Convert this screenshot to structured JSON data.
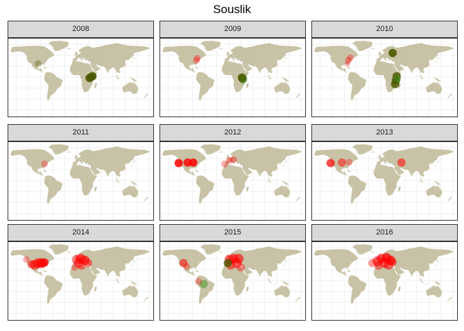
{
  "title": "Souslik",
  "colors": {
    "land": "#c8c3a6",
    "grid": "#ebebeb",
    "strip": "#d9d9d9",
    "red": "#ff0000",
    "olive": "#4d5a00",
    "green": "#3f8f1a"
  },
  "chart_data": {
    "type": "scatter",
    "geometry": "faceted world map with semi-transparent point markers",
    "title": "Souslik",
    "facets": [
      "2008",
      "2009",
      "2010",
      "2011",
      "2012",
      "2013",
      "2014",
      "2015",
      "2016"
    ],
    "panels": [
      {
        "year": "2008",
        "points": [
          {
            "lon": -96,
            "lat": 31,
            "color": "olive",
            "alpha": 0.35,
            "size": 5
          },
          {
            "lon": 32,
            "lat": -2,
            "color": "olive",
            "alpha": 0.9,
            "size": 6
          },
          {
            "lon": 35,
            "lat": 0,
            "color": "olive",
            "alpha": 0.9,
            "size": 6
          },
          {
            "lon": 39,
            "lat": 2,
            "color": "olive",
            "alpha": 0.9,
            "size": 6
          }
        ]
      },
      {
        "year": "2009",
        "points": [
          {
            "lon": -78,
            "lat": 43,
            "color": "red",
            "alpha": 0.3,
            "size": 5
          },
          {
            "lon": -80,
            "lat": 38,
            "color": "red",
            "alpha": 0.3,
            "size": 5
          },
          {
            "lon": 33,
            "lat": -1,
            "color": "olive",
            "alpha": 0.85,
            "size": 6
          },
          {
            "lon": 36,
            "lat": -5,
            "color": "green",
            "alpha": 0.6,
            "size": 6
          },
          {
            "lon": 34,
            "lat": -3,
            "color": "olive",
            "alpha": 0.7,
            "size": 6
          }
        ]
      },
      {
        "year": "2010",
        "points": [
          {
            "lon": -75,
            "lat": 44,
            "color": "red",
            "alpha": 0.3,
            "size": 5
          },
          {
            "lon": -80,
            "lat": 38,
            "color": "red",
            "alpha": 0.3,
            "size": 5
          },
          {
            "lon": -82,
            "lat": 30,
            "color": "red",
            "alpha": 0.25,
            "size": 4
          },
          {
            "lon": 30,
            "lat": 55,
            "color": "olive",
            "alpha": 0.9,
            "size": 6
          },
          {
            "lon": 40,
            "lat": 2,
            "color": "olive",
            "alpha": 0.85,
            "size": 6
          },
          {
            "lon": 38,
            "lat": -8,
            "color": "olive",
            "alpha": 0.85,
            "size": 6
          },
          {
            "lon": 36,
            "lat": -16,
            "color": "olive",
            "alpha": 0.85,
            "size": 6
          },
          {
            "lon": 42,
            "lat": -4,
            "color": "green",
            "alpha": 0.5,
            "size": 5
          }
        ]
      },
      {
        "year": "2011",
        "points": [
          {
            "lon": -80,
            "lat": 38,
            "color": "red",
            "alpha": 0.3,
            "size": 5
          }
        ]
      },
      {
        "year": "2012",
        "points": [
          {
            "lon": -124,
            "lat": 40,
            "color": "red",
            "alpha": 0.85,
            "size": 6
          },
          {
            "lon": -102,
            "lat": 41,
            "color": "red",
            "alpha": 0.8,
            "size": 6
          },
          {
            "lon": -88,
            "lat": 41,
            "color": "red",
            "alpha": 0.85,
            "size": 6
          },
          {
            "lon": 2,
            "lat": 46,
            "color": "red",
            "alpha": 0.35,
            "size": 5
          },
          {
            "lon": 12,
            "lat": 48,
            "color": "red",
            "alpha": 0.35,
            "size": 5
          },
          {
            "lon": -10,
            "lat": 38,
            "color": "red",
            "alpha": 0.3,
            "size": 5
          }
        ]
      },
      {
        "year": "2013",
        "points": [
          {
            "lon": -124,
            "lat": 40,
            "color": "red",
            "alpha": 0.7,
            "size": 6
          },
          {
            "lon": -96,
            "lat": 41,
            "color": "red",
            "alpha": 0.5,
            "size": 6
          },
          {
            "lon": -78,
            "lat": 42,
            "color": "red",
            "alpha": 0.3,
            "size": 5
          },
          {
            "lon": 52,
            "lat": 41,
            "color": "red",
            "alpha": 0.55,
            "size": 6
          }
        ]
      },
      {
        "year": "2014",
        "points": [
          {
            "lon": -125,
            "lat": 48,
            "color": "red",
            "alpha": 0.3,
            "size": 5
          },
          {
            "lon": -112,
            "lat": 37,
            "color": "red",
            "alpha": 0.5,
            "size": 6
          },
          {
            "lon": -104,
            "lat": 36,
            "color": "red",
            "alpha": 0.55,
            "size": 7
          },
          {
            "lon": -96,
            "lat": 40,
            "color": "red",
            "alpha": 0.6,
            "size": 7
          },
          {
            "lon": -88,
            "lat": 40,
            "color": "red",
            "alpha": 0.75,
            "size": 7
          },
          {
            "lon": -80,
            "lat": 41,
            "color": "red",
            "alpha": 0.8,
            "size": 6
          },
          {
            "lon": 0,
            "lat": 48,
            "color": "red",
            "alpha": 0.5,
            "size": 7
          },
          {
            "lon": 10,
            "lat": 50,
            "color": "red",
            "alpha": 0.65,
            "size": 7
          },
          {
            "lon": 20,
            "lat": 46,
            "color": "red",
            "alpha": 0.65,
            "size": 7
          },
          {
            "lon": 5,
            "lat": 40,
            "color": "red",
            "alpha": 0.5,
            "size": 7
          },
          {
            "lon": 28,
            "lat": 40,
            "color": "red",
            "alpha": 0.5,
            "size": 6
          },
          {
            "lon": 12,
            "lat": 34,
            "color": "red",
            "alpha": 0.45,
            "size": 6
          },
          {
            "lon": -5,
            "lat": 30,
            "color": "red",
            "alpha": 0.35,
            "size": 5
          }
        ]
      },
      {
        "year": "2015",
        "points": [
          {
            "lon": -112,
            "lat": 40,
            "color": "red",
            "alpha": 0.55,
            "size": 6
          },
          {
            "lon": -104,
            "lat": 32,
            "color": "red",
            "alpha": 0.3,
            "size": 5
          },
          {
            "lon": -62,
            "lat": -8,
            "color": "green",
            "alpha": 0.5,
            "size": 6
          },
          {
            "lon": -75,
            "lat": -2,
            "color": "red",
            "alpha": 0.3,
            "size": 5
          },
          {
            "lon": 2,
            "lat": 48,
            "color": "red",
            "alpha": 0.6,
            "size": 7
          },
          {
            "lon": 12,
            "lat": 50,
            "color": "red",
            "alpha": 0.6,
            "size": 7
          },
          {
            "lon": 25,
            "lat": 50,
            "color": "red",
            "alpha": 0.6,
            "size": 7
          },
          {
            "lon": 20,
            "lat": 40,
            "color": "red",
            "alpha": 0.6,
            "size": 7
          },
          {
            "lon": 5,
            "lat": 36,
            "color": "red",
            "alpha": 0.5,
            "size": 7
          },
          {
            "lon": -2,
            "lat": 40,
            "color": "olive",
            "alpha": 0.8,
            "size": 6
          },
          {
            "lon": 30,
            "lat": 30,
            "color": "red",
            "alpha": 0.4,
            "size": 6
          }
        ]
      },
      {
        "year": "2016",
        "points": [
          {
            "lon": -20,
            "lat": 40,
            "color": "red",
            "alpha": 0.4,
            "size": 6
          },
          {
            "lon": -8,
            "lat": 44,
            "color": "red",
            "alpha": 0.6,
            "size": 7
          },
          {
            "lon": 2,
            "lat": 50,
            "color": "red",
            "alpha": 0.65,
            "size": 7
          },
          {
            "lon": 15,
            "lat": 52,
            "color": "red",
            "alpha": 0.7,
            "size": 7
          },
          {
            "lon": 25,
            "lat": 46,
            "color": "red",
            "alpha": 0.7,
            "size": 7
          },
          {
            "lon": 10,
            "lat": 40,
            "color": "red",
            "alpha": 0.6,
            "size": 7
          },
          {
            "lon": 20,
            "lat": 36,
            "color": "red",
            "alpha": 0.55,
            "size": 7
          },
          {
            "lon": 30,
            "lat": 42,
            "color": "red",
            "alpha": 0.5,
            "size": 6
          },
          {
            "lon": -5,
            "lat": 34,
            "color": "red",
            "alpha": 0.45,
            "size": 6
          }
        ]
      }
    ]
  }
}
